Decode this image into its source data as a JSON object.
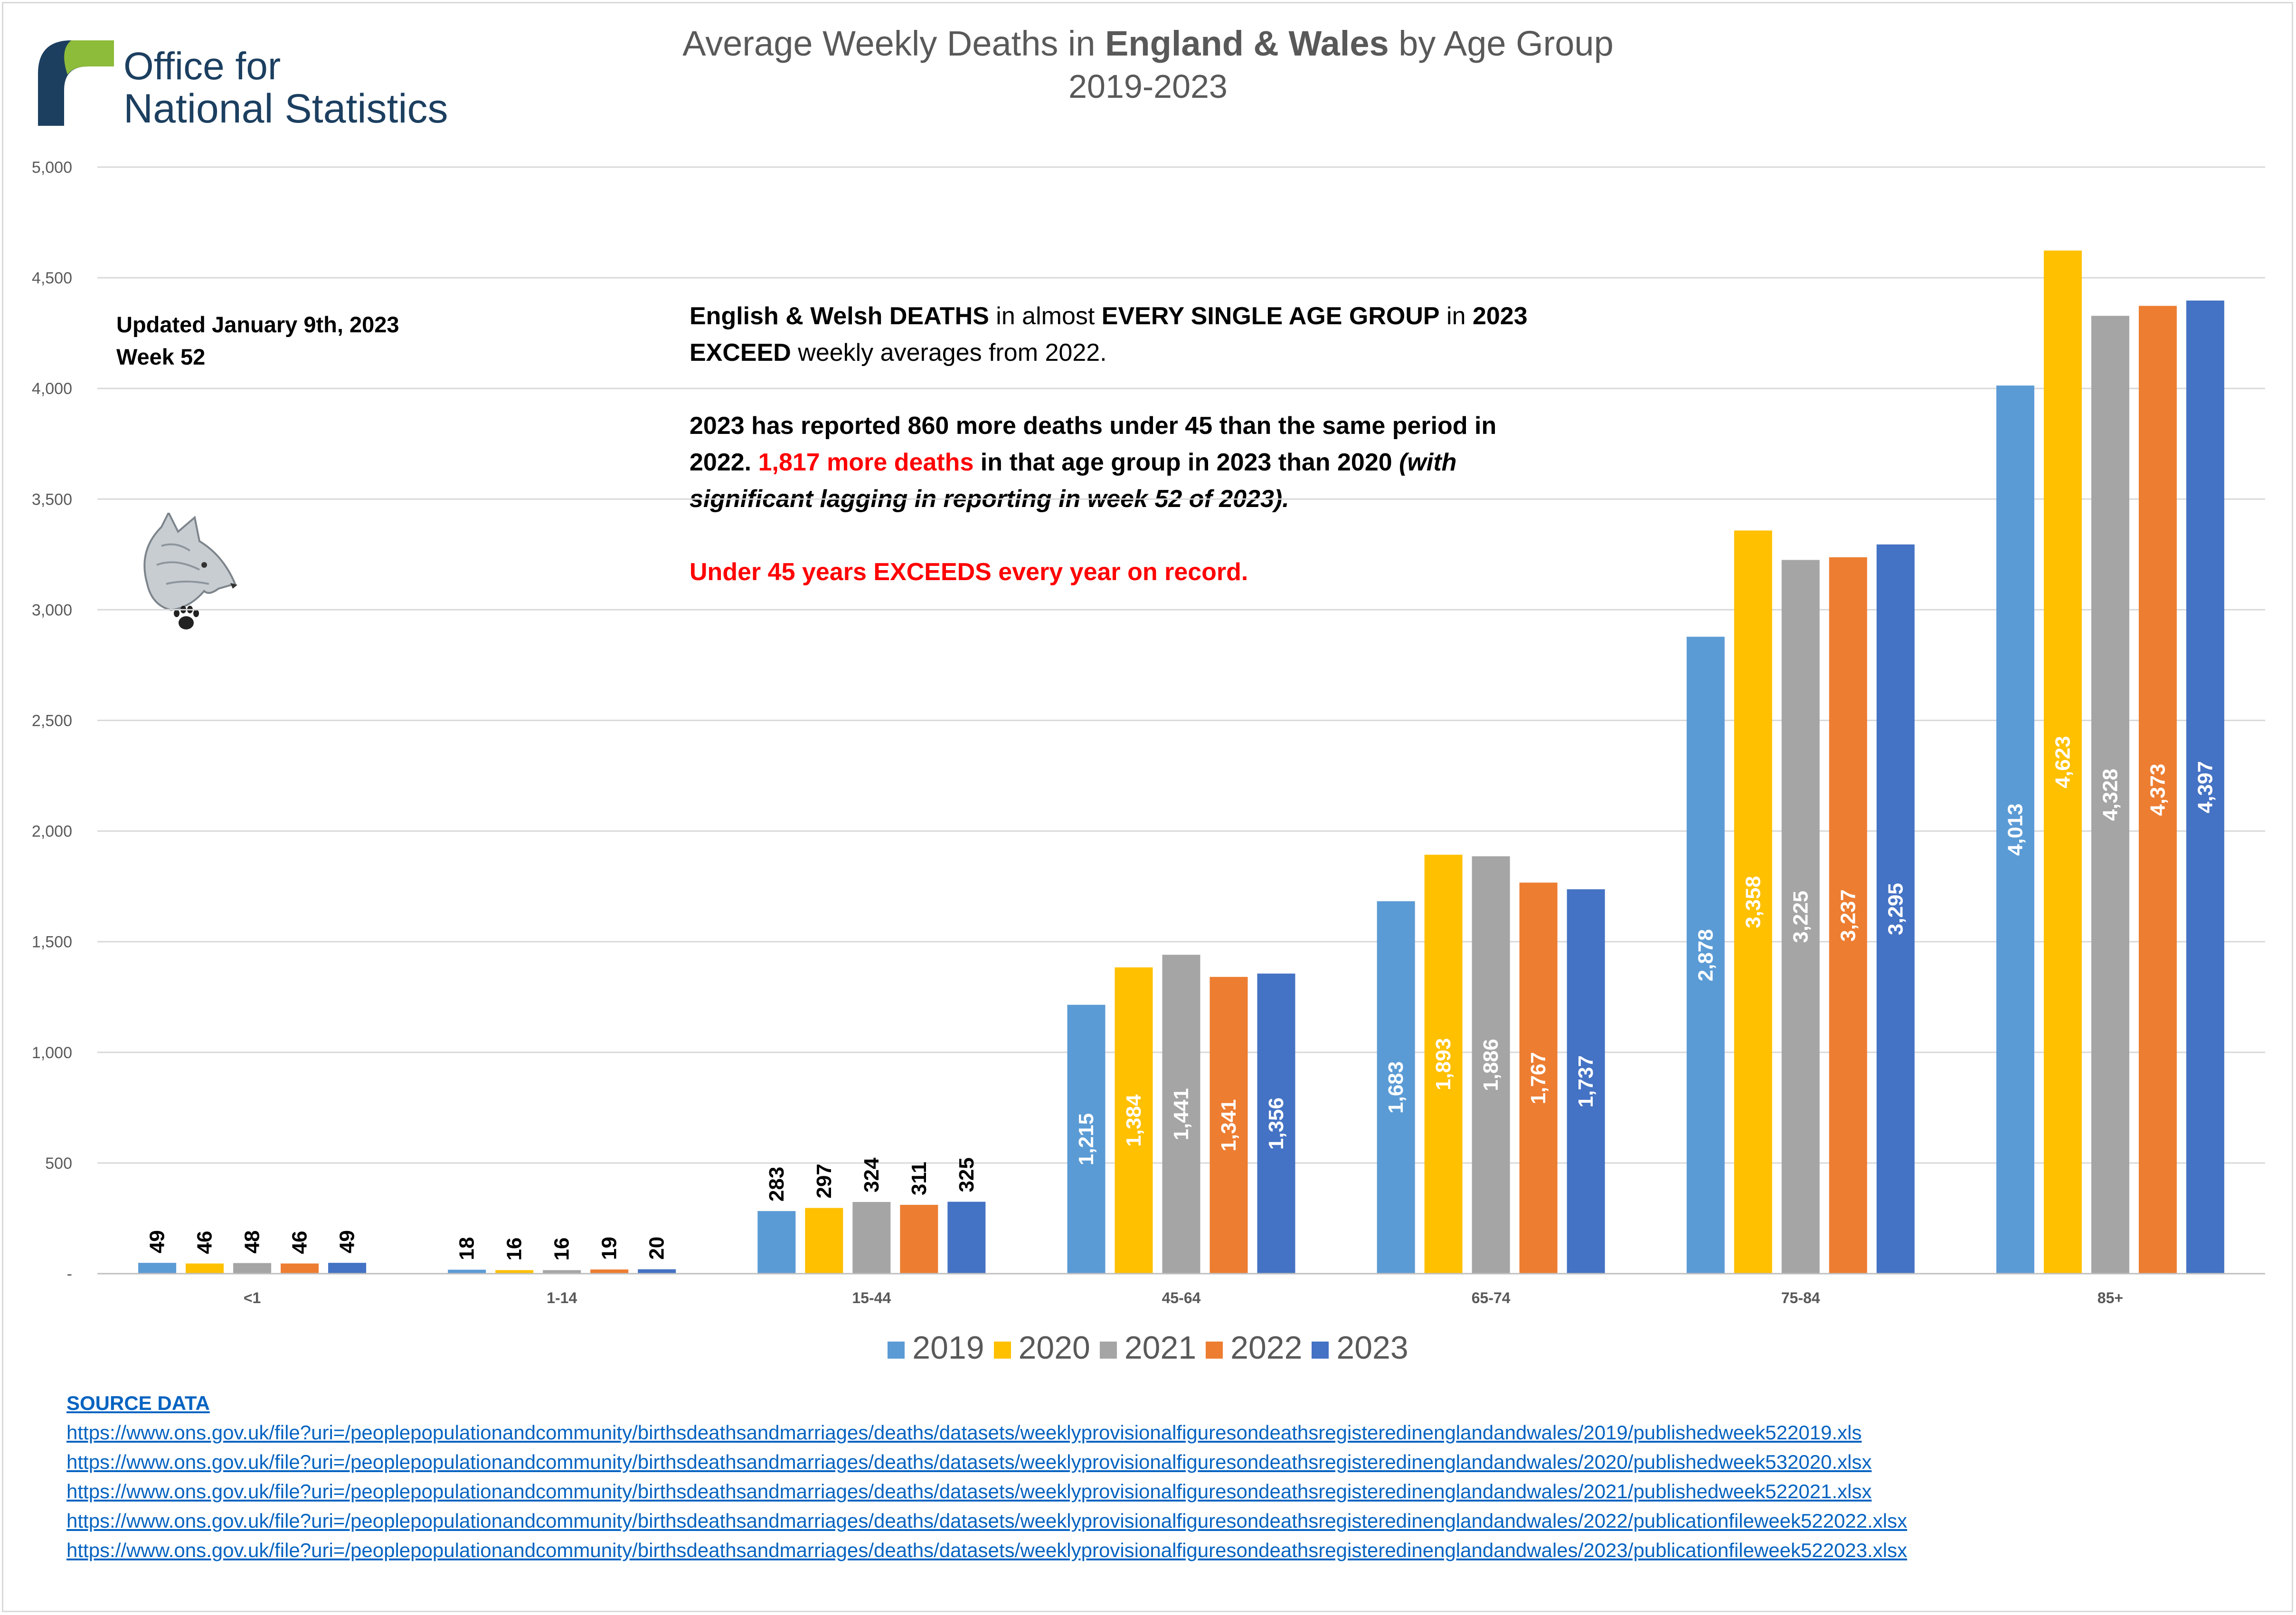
{
  "logo": {
    "line1": "Office for",
    "line2": "National Statistics",
    "colors": {
      "navy": "#1c3f60",
      "green": "#8dbb3a"
    }
  },
  "updated": {
    "line1": "Updated January 9th, 2023",
    "line2": "Week 52"
  },
  "wolf_icon": "wolf-head-icon",
  "annotation": {
    "p1": [
      {
        "t": "English & Welsh DEATHS",
        "b": true
      },
      {
        "t": " in almost ",
        "b": false
      },
      {
        "t": "EVERY SINGLE AGE GROUP",
        "b": true
      },
      {
        "t": " in ",
        "b": false
      },
      {
        "t": "2023 EXCEED",
        "b": true
      },
      {
        "t": " weekly averages from 2022.",
        "b": false
      }
    ],
    "p2": [
      {
        "t": "2023 has reported 860 more deaths under 45 than the same period in 2022. ",
        "b": true
      },
      {
        "t": "1,817 more deaths",
        "b": true,
        "red": true
      },
      {
        "t": " in that age group in 2023 than 2020 ",
        "b": true
      },
      {
        "t": "(with significant lagging in reporting in week 52 of 2023).",
        "b": true,
        "i": true
      }
    ],
    "p3": [
      {
        "t": "Under 45 years EXCEEDS every year on record.",
        "b": true,
        "red": true
      }
    ]
  },
  "chart_data": {
    "type": "bar",
    "title_parts": [
      {
        "t": "Average Weekly Deaths in ",
        "b": false
      },
      {
        "t": "England & Wales",
        "b": true
      },
      {
        "t": " by Age Group",
        "b": false
      }
    ],
    "subtitle": "2019-2023",
    "categories": [
      "<1",
      "1-14",
      "15-44",
      "45-64",
      "65-74",
      "75-84",
      "85+"
    ],
    "series": [
      {
        "name": "2019",
        "color": "#5b9bd5",
        "values": [
          49,
          18,
          283,
          1215,
          1683,
          2878,
          4013
        ]
      },
      {
        "name": "2020",
        "color": "#ffc000",
        "values": [
          46,
          16,
          297,
          1384,
          1893,
          3358,
          4623
        ]
      },
      {
        "name": "2021",
        "color": "#a5a5a5",
        "values": [
          48,
          16,
          324,
          1441,
          1886,
          3225,
          4328
        ]
      },
      {
        "name": "2022",
        "color": "#ed7d31",
        "values": [
          46,
          19,
          311,
          1341,
          1767,
          3237,
          4373
        ]
      },
      {
        "name": "2023",
        "color": "#4472c4",
        "values": [
          49,
          20,
          325,
          1356,
          1737,
          3295,
          4397
        ]
      }
    ],
    "y_ticks": [
      "-",
      "500",
      "1,000",
      "1,500",
      "2,000",
      "2,500",
      "3,000",
      "3,500",
      "4,000",
      "4,500",
      "5,000"
    ],
    "ylim": [
      0,
      5000
    ],
    "grid": true,
    "legend_position": "bottom"
  },
  "source": {
    "title": "SOURCE DATA",
    "links": [
      "https://www.ons.gov.uk/file?uri=/peoplepopulationandcommunity/birthsdeathsandmarriages/deaths/datasets/weeklyprovisionalfiguresondeathsregisteredinenglandandwales/2019/publishedweek522019.xls",
      "https://www.ons.gov.uk/file?uri=/peoplepopulationandcommunity/birthsdeathsandmarriages/deaths/datasets/weeklyprovisionalfiguresondeathsregisteredinenglandandwales/2020/publishedweek532020.xlsx",
      "https://www.ons.gov.uk/file?uri=/peoplepopulationandcommunity/birthsdeathsandmarriages/deaths/datasets/weeklyprovisionalfiguresondeathsregisteredinenglandandwales/2021/publishedweek522021.xlsx",
      "https://www.ons.gov.uk/file?uri=/peoplepopulationandcommunity/birthsdeathsandmarriages/deaths/datasets/weeklyprovisionalfiguresondeathsregisteredinenglandandwales/2022/publicationfileweek522022.xlsx",
      "https://www.ons.gov.uk/file?uri=/peoplepopulationandcommunity/birthsdeathsandmarriages/deaths/datasets/weeklyprovisionalfiguresondeathsregisteredinenglandandwales/2023/publicationfileweek522023.xlsx"
    ]
  }
}
